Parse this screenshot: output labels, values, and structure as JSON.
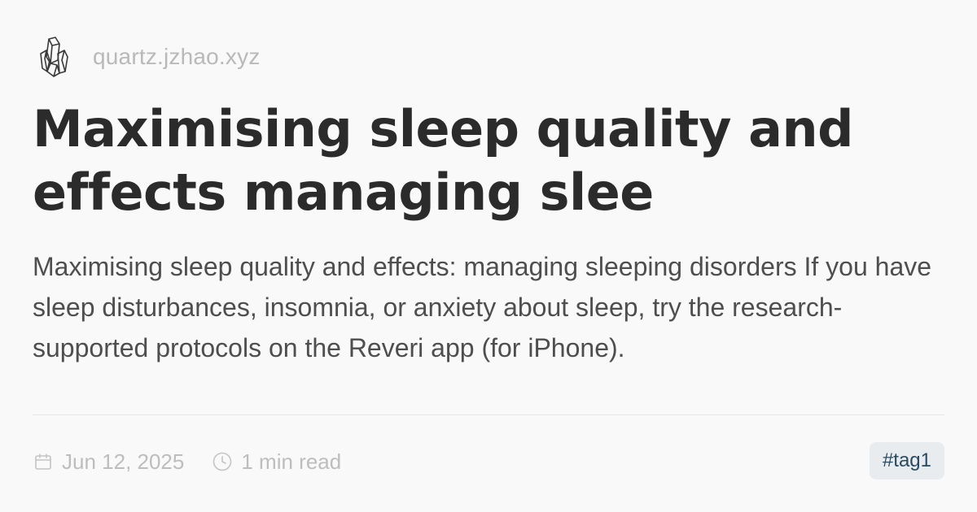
{
  "site": {
    "host": "quartz.jzhao.xyz",
    "logo_icon": "crystal-quartz-icon"
  },
  "title": "Maximising sleep quality and effects managing slee",
  "description": "Maximising sleep quality and effects: managing sleeping disorders If you have sleep disturbances, insomnia, or anxiety about sleep, try the research-supported protocols on the Reveri app (for iPhone).",
  "meta": {
    "date": "Jun 12, 2025",
    "date_icon": "calendar-icon",
    "reading_time": "1 min read",
    "reading_icon": "clock-icon"
  },
  "tags": [
    "#tag1"
  ],
  "colors": {
    "background": "#f9f9f9",
    "title": "#2b2b2b",
    "description": "#4e4e4e",
    "muted": "#bdbdbd",
    "tag_bg": "#e9ecef",
    "tag_text": "#284b63"
  }
}
